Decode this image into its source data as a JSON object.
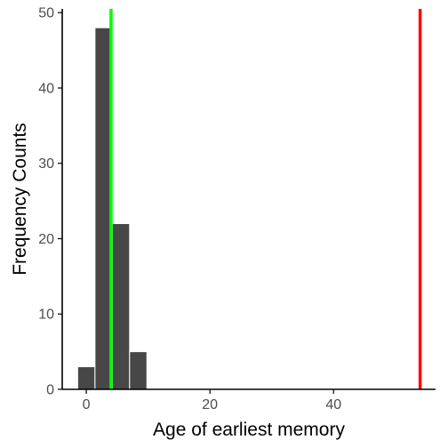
{
  "chart_data": {
    "type": "bar",
    "title": "",
    "xlabel": "Age of earliest memory",
    "ylabel": "Frequency Counts",
    "bin_width": 2.8,
    "bins": [
      {
        "start": -1.4,
        "end": 1.4,
        "count": 3
      },
      {
        "start": 1.4,
        "end": 4.2,
        "count": 48
      },
      {
        "start": 4.2,
        "end": 7.0,
        "count": 22
      },
      {
        "start": 7.0,
        "end": 9.8,
        "count": 5
      }
    ],
    "xlim": [
      -3.9,
      56.5
    ],
    "ylim": [
      0,
      50.5
    ],
    "x_ticks": [
      0,
      20,
      40
    ],
    "y_ticks": [
      0,
      10,
      20,
      30,
      40,
      50
    ],
    "x_tick_labels": [
      "0",
      "20",
      "40"
    ],
    "y_tick_labels": [
      "0",
      "10",
      "20",
      "30",
      "40",
      "50"
    ],
    "vlines": [
      {
        "x": 4.0,
        "color": "#00ff00"
      },
      {
        "x": 54.0,
        "color": "#ff0000"
      }
    ],
    "bar_color": "#474747",
    "bar_edge_color": "#ffffff",
    "grid": false,
    "legend": "none"
  }
}
